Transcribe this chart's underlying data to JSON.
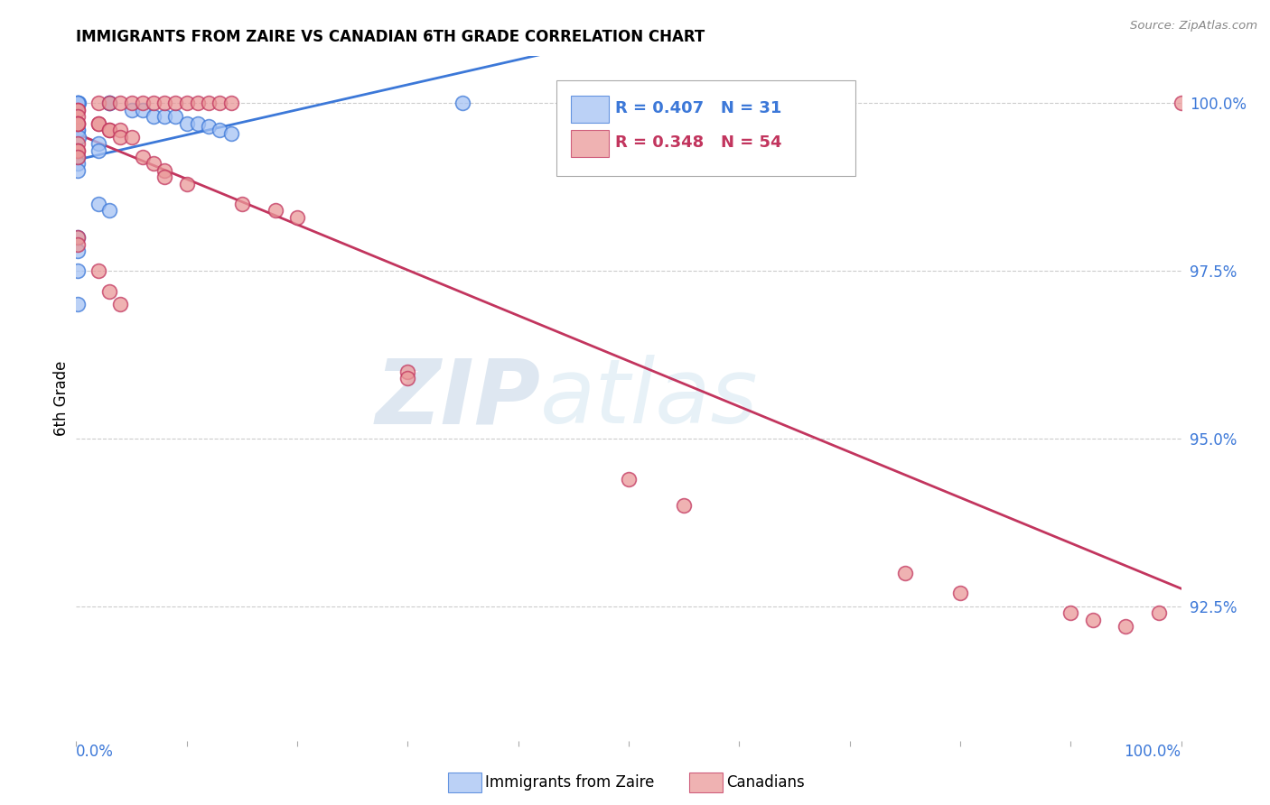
{
  "title": "IMMIGRANTS FROM ZAIRE VS CANADIAN 6TH GRADE CORRELATION CHART",
  "source": "Source: ZipAtlas.com",
  "ylabel": "6th Grade",
  "ylabel_right_ticks": [
    "100.0%",
    "97.5%",
    "95.0%",
    "92.5%"
  ],
  "ylabel_right_vals": [
    1.0,
    0.975,
    0.95,
    0.925
  ],
  "legend_blue_R": "0.407",
  "legend_blue_N": "31",
  "legend_pink_R": "0.348",
  "legend_pink_N": "54",
  "blue_color": "#a4c2f4",
  "pink_color": "#ea9999",
  "blue_line_color": "#3c78d8",
  "pink_line_color": "#c2355e",
  "watermark_ZIP": "ZIP",
  "watermark_atlas": "atlas",
  "blue_points_x": [
    0.001,
    0.002,
    0.001,
    0.001,
    0.03,
    0.03,
    0.05,
    0.06,
    0.07,
    0.08,
    0.09,
    0.1,
    0.11,
    0.12,
    0.13,
    0.14,
    0.001,
    0.001,
    0.002,
    0.02,
    0.02,
    0.001,
    0.001,
    0.001,
    0.02,
    0.03,
    0.001,
    0.001,
    0.001,
    0.001,
    0.35
  ],
  "blue_points_y": [
    1.0,
    1.0,
    1.0,
    1.0,
    1.0,
    1.0,
    0.999,
    0.999,
    0.998,
    0.998,
    0.998,
    0.997,
    0.997,
    0.9965,
    0.996,
    0.9955,
    0.996,
    0.996,
    0.995,
    0.994,
    0.993,
    0.992,
    0.991,
    0.99,
    0.985,
    0.984,
    0.98,
    0.978,
    0.975,
    0.97,
    1.0
  ],
  "pink_points_x": [
    0.02,
    0.03,
    0.04,
    0.05,
    0.06,
    0.07,
    0.08,
    0.09,
    0.1,
    0.11,
    0.12,
    0.13,
    0.14,
    0.001,
    0.001,
    0.001,
    0.001,
    0.001,
    0.001,
    0.02,
    0.02,
    0.03,
    0.03,
    0.04,
    0.04,
    0.05,
    0.001,
    0.001,
    0.001,
    0.001,
    0.06,
    0.07,
    0.08,
    0.08,
    0.1,
    0.15,
    0.18,
    0.2,
    0.001,
    0.001,
    0.02,
    0.03,
    0.04,
    0.3,
    0.3,
    0.5,
    0.55,
    0.75,
    0.8,
    0.9,
    0.92,
    0.95,
    0.98,
    1.0
  ],
  "pink_points_y": [
    1.0,
    1.0,
    1.0,
    1.0,
    1.0,
    1.0,
    1.0,
    1.0,
    1.0,
    1.0,
    1.0,
    1.0,
    1.0,
    0.999,
    0.999,
    0.998,
    0.997,
    0.997,
    0.997,
    0.997,
    0.997,
    0.996,
    0.996,
    0.996,
    0.995,
    0.995,
    0.994,
    0.993,
    0.993,
    0.992,
    0.992,
    0.991,
    0.99,
    0.989,
    0.988,
    0.985,
    0.984,
    0.983,
    0.98,
    0.979,
    0.975,
    0.972,
    0.97,
    0.96,
    0.959,
    0.944,
    0.94,
    0.93,
    0.927,
    0.924,
    0.923,
    0.922,
    0.924,
    1.0
  ]
}
